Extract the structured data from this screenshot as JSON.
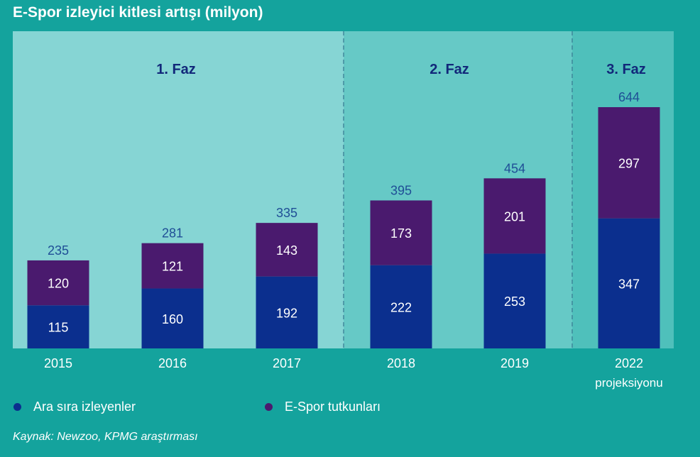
{
  "title": "E-Spor izleyici kitlesi artışı (milyon)",
  "source": "Kaynak: Newzoo, KPMG araştırması",
  "colors": {
    "background": "#14a39d",
    "phase1_panel": "#86d5d4",
    "phase2_panel": "#66c9c6",
    "phase3_panel": "#4fc0bb",
    "occasional": "#0b2f8e",
    "enthusiasts": "#4a1a6e",
    "phase_label": "#12287a",
    "total_label": "#1f4e96"
  },
  "legend": [
    {
      "label": "Ara sıra izleyenler",
      "color": "#0b2f8e"
    },
    {
      "label": "E-Spor tutkunları",
      "color": "#4a1a6e"
    }
  ],
  "chart_data": {
    "type": "bar",
    "stacked": true,
    "title": "E-Spor izleyici kitlesi artışı (milyon)",
    "unit": "milyon",
    "categories": [
      "2015",
      "2016",
      "2017",
      "2018",
      "2019",
      "2022"
    ],
    "category_sublabels": [
      "",
      "",
      "",
      "",
      "",
      "projeksiyonu"
    ],
    "series": [
      {
        "name": "Ara sıra izleyenler",
        "values": [
          115,
          160,
          192,
          222,
          253,
          347
        ]
      },
      {
        "name": "E-Spor tutkunları",
        "values": [
          120,
          121,
          143,
          173,
          201,
          297
        ]
      }
    ],
    "totals": [
      235,
      281,
      335,
      395,
      454,
      644
    ],
    "phases": [
      {
        "label": "1. Faz",
        "categories": [
          "2015",
          "2016",
          "2017"
        ]
      },
      {
        "label": "2. Faz",
        "categories": [
          "2018",
          "2019"
        ]
      },
      {
        "label": "3. Faz",
        "categories": [
          "2022"
        ]
      }
    ],
    "ylim": [
      0,
      644
    ]
  }
}
